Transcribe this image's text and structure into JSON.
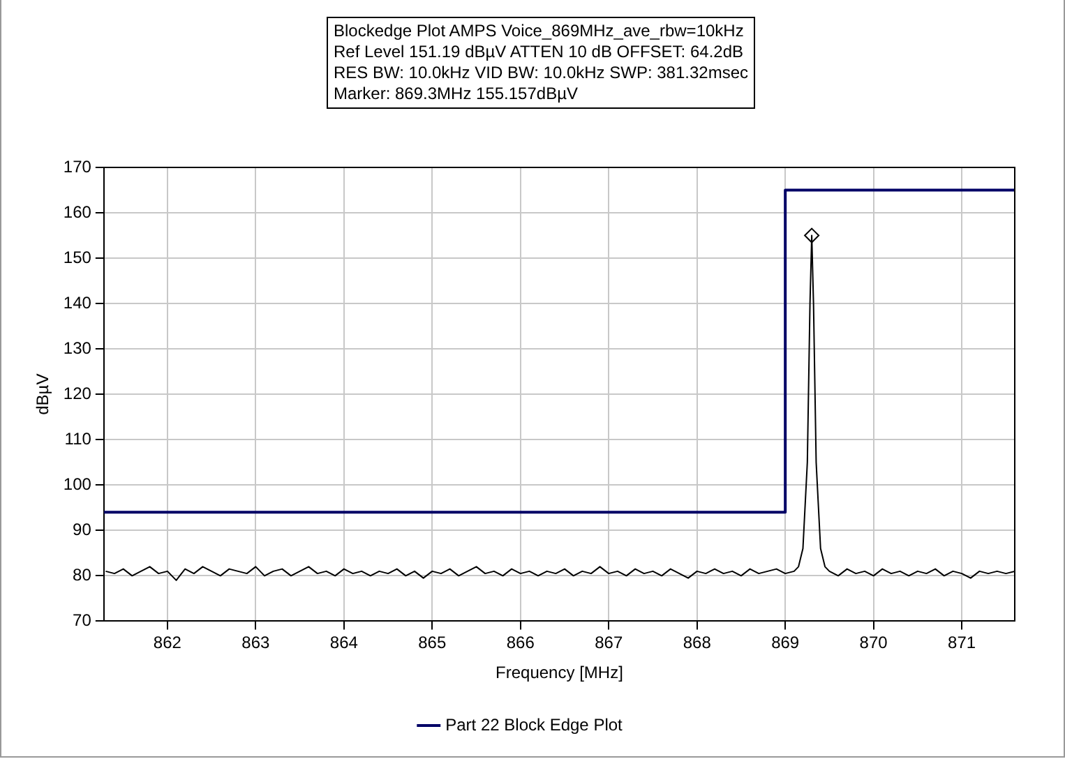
{
  "chart_data": {
    "type": "line",
    "title": "Blockedge Plot AMPS Voice_869MHz_ave_rbw=10kHz",
    "annotations": [
      "Ref Level 151.19 dBµV    ATTEN 10 dB    OFFSET: 64.2dB",
      "RES BW: 10.0kHz  VID BW: 10.0kHz  SWP: 381.32msec",
      "Marker: 869.3MHz  155.157dBµV"
    ],
    "xlabel": "Frequency [MHz]",
    "ylabel": "dBµV",
    "xlim": [
      861.28,
      871.6
    ],
    "xticks": [
      862,
      863,
      864,
      865,
      866,
      867,
      868,
      869,
      870,
      871
    ],
    "ylim": [
      70,
      170
    ],
    "yticks": [
      70,
      80,
      90,
      100,
      110,
      120,
      130,
      140,
      150,
      160,
      170
    ],
    "grid": true,
    "legend": "bottom",
    "series": [
      {
        "name": "Part 22 Block Edge Plot",
        "color": "#000066",
        "x": [
          861.28,
          869,
          869,
          871.6
        ],
        "values": [
          94,
          94,
          165,
          165
        ]
      },
      {
        "color": "#000000",
        "x": [
          861.3,
          861.4,
          861.5,
          861.6,
          861.7,
          861.8,
          861.9,
          862,
          862.1,
          862.2,
          862.3,
          862.4,
          862.5,
          862.6,
          862.7,
          862.8,
          862.9,
          863,
          863.1,
          863.2,
          863.3,
          863.4,
          863.5,
          863.6,
          863.7,
          863.8,
          863.9,
          864,
          864.1,
          864.2,
          864.3,
          864.4,
          864.5,
          864.6,
          864.7,
          864.8,
          864.9,
          865,
          865.1,
          865.2,
          865.3,
          865.4,
          865.5,
          865.6,
          865.7,
          865.8,
          865.9,
          866,
          866.1,
          866.2,
          866.3,
          866.4,
          866.5,
          866.6,
          866.7,
          866.8,
          866.9,
          867,
          867.1,
          867.2,
          867.3,
          867.4,
          867.5,
          867.6,
          867.7,
          867.8,
          867.9,
          868,
          868.1,
          868.2,
          868.3,
          868.4,
          868.5,
          868.6,
          868.7,
          868.8,
          868.9,
          869,
          869.1,
          869.15,
          869.2,
          869.25,
          869.28,
          869.3,
          869.32,
          869.35,
          869.4,
          869.45,
          869.5,
          869.6,
          869.7,
          869.8,
          869.9,
          870,
          870.1,
          870.2,
          870.3,
          870.4,
          870.5,
          870.6,
          870.7,
          870.8,
          870.9,
          871,
          871.1,
          871.2,
          871.3,
          871.4,
          871.5,
          871.6
        ],
        "values": [
          81,
          80.5,
          81.5,
          80,
          81,
          82,
          80.5,
          81,
          79,
          81.5,
          80.5,
          82,
          81,
          80,
          81.5,
          81,
          80.5,
          82,
          80,
          81,
          81.5,
          80,
          81,
          82,
          80.5,
          81,
          80,
          81.5,
          80.5,
          81,
          80,
          81,
          80.5,
          81.5,
          80,
          81,
          79.5,
          81,
          80.5,
          81.5,
          80,
          81,
          82,
          80.5,
          81,
          80,
          81.5,
          80.5,
          81,
          80,
          81,
          80.5,
          81.5,
          80,
          81,
          80.5,
          82,
          80.5,
          81,
          80,
          81.5,
          80.5,
          81,
          80,
          81.5,
          80.5,
          79.5,
          81,
          80.5,
          81.5,
          80.5,
          81,
          80,
          81.5,
          80.5,
          81,
          81.5,
          80.5,
          81,
          82,
          86,
          105,
          140,
          155,
          140,
          105,
          86,
          82,
          81,
          80,
          81.5,
          80.5,
          81,
          80,
          81.5,
          80.5,
          81,
          80,
          81,
          80.5,
          81.5,
          80,
          81,
          80.5,
          79.5,
          81,
          80.5,
          81,
          80.5,
          81
        ]
      },
      {
        "type": "scatter",
        "marker": "diamond",
        "color": "#000000",
        "x": [
          869.3
        ],
        "values": [
          155
        ]
      }
    ]
  }
}
